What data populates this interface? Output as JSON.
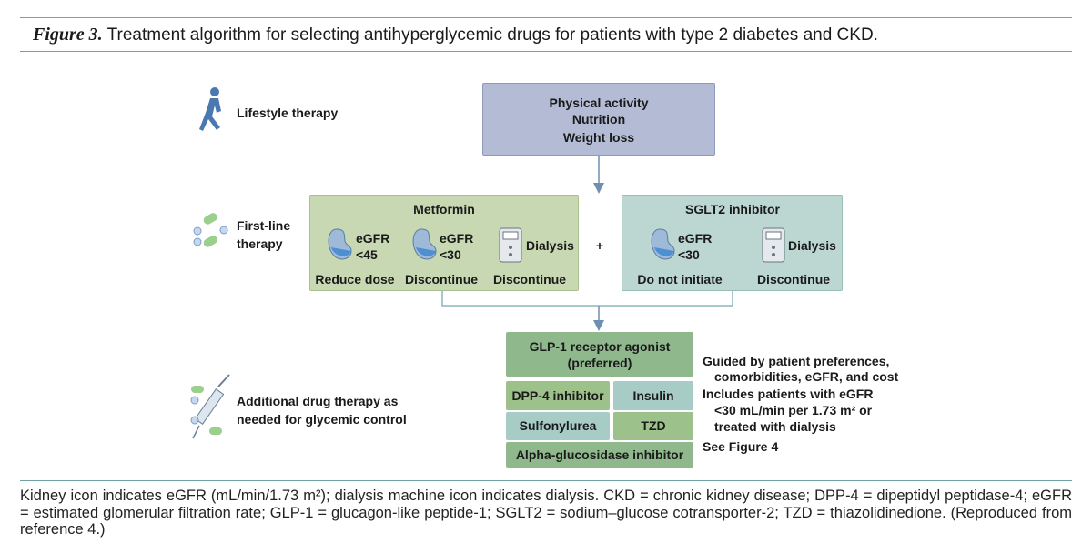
{
  "caption": {
    "label": "Figure 3.",
    "text": "Treatment algorithm for selecting antihyperglycemic drugs for patients with type 2 diabetes and CKD."
  },
  "rows": [
    {
      "lines": [
        "Lifestyle therapy"
      ]
    },
    {
      "lines": [
        "First-line",
        "therapy"
      ]
    },
    {
      "lines": [
        "Additional drug therapy as",
        "needed for glycemic control"
      ]
    }
  ],
  "lifestyle": {
    "lines": [
      "Physical activity",
      "Nutrition",
      "Weight loss"
    ]
  },
  "metformin": {
    "title": "Metformin",
    "items": [
      {
        "lines": [
          "eGFR",
          "<45"
        ],
        "action": "Reduce dose"
      },
      {
        "lines": [
          "eGFR",
          "<30"
        ],
        "action": "Discontinue"
      },
      {
        "lines": [
          "Dialysis"
        ],
        "action": "Discontinue"
      }
    ]
  },
  "plus": "+",
  "sglt2": {
    "title": "SGLT2 inhibitor",
    "items": [
      {
        "lines": [
          "eGFR",
          "<30"
        ],
        "action": "Do not initiate"
      },
      {
        "lines": [
          "Dialysis"
        ],
        "action": "Discontinue"
      }
    ]
  },
  "additional": {
    "boxes": [
      [
        "GLP-1 receptor agonist",
        "(preferred)"
      ],
      [
        "DPP-4 inhibitor"
      ],
      [
        "Insulin"
      ],
      [
        "Sulfonylurea"
      ],
      [
        "TZD"
      ],
      [
        "Alpha-glucosidase inhibitor"
      ]
    ],
    "notes": [
      "Guided by patient preferences,",
      "comorbidities, eGFR, and cost",
      "Includes patients with eGFR",
      "<30 mL/min per 1.73 m² or",
      "treated with dialysis",
      "See Figure 4"
    ]
  },
  "footnote": "Kidney icon indicates eGFR (mL/min/1.73 m²); dialysis machine icon indicates dialysis. CKD = chronic kidney disease; DPP-4 = dipeptidyl peptidase-4; eGFR = estimated glomerular filtration rate; GLP-1 = glucagon-like peptide-1; SGLT2 = sodium–glucose cotransporter-2; TZD = thiazolidinedione. (Reproduced from reference 4.)"
}
